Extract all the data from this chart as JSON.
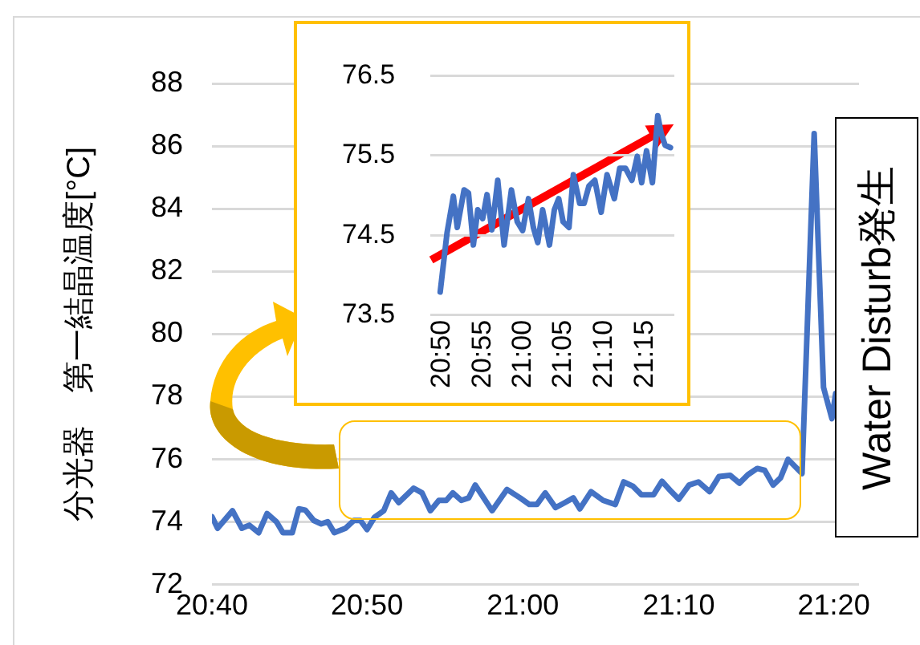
{
  "chart_data": [
    {
      "type": "line",
      "ylabel": "分光器　第一結晶温度[°C]",
      "annotations": [
        "Water Disturb発生"
      ],
      "xlim": [
        20.667,
        21.36
      ],
      "xticks": [
        {
          "value": 20.667,
          "label": "20:40"
        },
        {
          "value": 20.833,
          "label": "20:50"
        },
        {
          "value": 21,
          "label": "21:00"
        },
        {
          "value": 21.167,
          "label": "21:10"
        },
        {
          "value": 21.333,
          "label": "21:20"
        }
      ],
      "ylim": [
        72,
        88
      ],
      "yticks": [
        72,
        74,
        76,
        78,
        80,
        82,
        84,
        86,
        88
      ],
      "grid": "y",
      "legend": false,
      "marker": "none",
      "line_style": "solid",
      "x": [
        20.667,
        20.673,
        20.689,
        20.699,
        20.707,
        20.717,
        20.726,
        20.736,
        20.743,
        20.753,
        20.76,
        20.767,
        20.776,
        20.784,
        20.791,
        20.798,
        20.81,
        20.819,
        20.826,
        20.833,
        20.841,
        20.851,
        20.859,
        20.867,
        20.883,
        20.892,
        20.901,
        20.91,
        20.918,
        20.925,
        20.934,
        20.942,
        20.949,
        20.958,
        20.967,
        20.983,
        20.997,
        21.007,
        21.015,
        21.024,
        21.035,
        21.045,
        21.054,
        21.061,
        21.073,
        21.086,
        21.099,
        21.108,
        21.118,
        21.127,
        21.14,
        21.149,
        21.159,
        21.167,
        21.178,
        21.188,
        21.2,
        21.21,
        21.222,
        21.232,
        21.241,
        21.251,
        21.259,
        21.268,
        21.276,
        21.284,
        21.299,
        21.312,
        21.322,
        21.331,
        21.335
      ],
      "series": [
        {
          "color": "#4472c4",
          "values": [
            74.17,
            73.8,
            74.36,
            73.8,
            73.9,
            73.66,
            74.27,
            74.01,
            73.66,
            73.66,
            74.42,
            74.38,
            74.05,
            73.94,
            74.01,
            73.66,
            73.8,
            74.05,
            74.05,
            73.76,
            74.15,
            74.36,
            74.93,
            74.62,
            75.08,
            74.93,
            74.36,
            74.69,
            74.69,
            74.93,
            74.69,
            74.77,
            75.18,
            74.77,
            74.36,
            75.04,
            74.77,
            74.56,
            74.56,
            74.93,
            74.46,
            74.62,
            74.77,
            74.42,
            74.97,
            74.69,
            74.56,
            75.28,
            75.14,
            74.87,
            74.87,
            75.3,
            74.97,
            74.73,
            75.18,
            75.28,
            74.97,
            75.45,
            75.49,
            75.24,
            75.51,
            75.71,
            75.65,
            75.18,
            75.41,
            76,
            75.55,
            86.4,
            78.3,
            77.3,
            78.1
          ]
        }
      ]
    },
    {
      "type": "line",
      "xlim": [
        20.81,
        21.31
      ],
      "xticks": [
        {
          "value": 20.833,
          "label": "20:50"
        },
        {
          "value": 20.917,
          "label": "20:55"
        },
        {
          "value": 21,
          "label": "21:00"
        },
        {
          "value": 21.083,
          "label": "21:05"
        },
        {
          "value": 21.167,
          "label": "21:10"
        },
        {
          "value": 21.25,
          "label": "21:15"
        }
      ],
      "ylim": [
        73.5,
        76.5
      ],
      "yticks": [
        73.5,
        74.5,
        75.5,
        76.5
      ],
      "grid": "y",
      "legend": false,
      "marker": "none",
      "line_style": "solid",
      "x": [
        20.83,
        20.844,
        20.857,
        20.865,
        20.879,
        20.888,
        20.898,
        20.907,
        20.917,
        20.926,
        20.936,
        20.948,
        20.961,
        20.976,
        20.988,
        20.999,
        21.011,
        21.021,
        21.03,
        21.04,
        21.054,
        21.064,
        21.073,
        21.082,
        21.094,
        21.103,
        21.116,
        21.125,
        21.135,
        21.147,
        21.16,
        21.172,
        21.187,
        21.198,
        21.21,
        21.223,
        21.234,
        21.243,
        21.253,
        21.265,
        21.276,
        21.283,
        21.291,
        21.302
      ],
      "series": [
        {
          "color": "#4472c4",
          "values": [
            73.79,
            74.53,
            74.99,
            74.6,
            75.07,
            75.03,
            74.38,
            74.82,
            74.71,
            75.01,
            74.57,
            75.19,
            74.38,
            75.07,
            74.67,
            74.56,
            74.96,
            74.6,
            74.41,
            74.82,
            74.38,
            74.82,
            74.96,
            74.67,
            74.6,
            75.26,
            74.9,
            74.9,
            75.12,
            75.19,
            74.79,
            75.26,
            74.96,
            75.34,
            75.34,
            75.19,
            75.49,
            75.16,
            75.56,
            75.16,
            76,
            75.78,
            75.63,
            75.6
          ]
        }
      ]
    }
  ]
}
